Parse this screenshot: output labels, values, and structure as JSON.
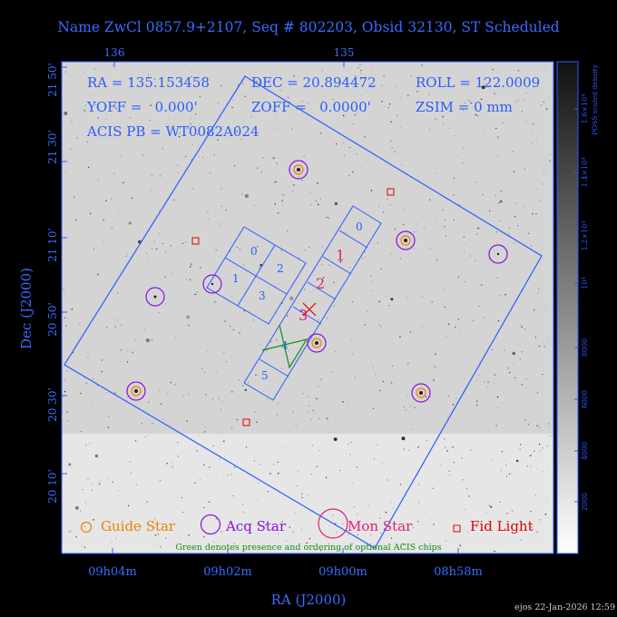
{
  "title": "Name ZwCl 0857.9+2107, Seq # 802203, Obsid 32130, ST Scheduled",
  "colors": {
    "blue": "#2a5cff",
    "text_blue": "#3a6cff",
    "magenta": "#e0207a",
    "red": "#e00000",
    "orange": "#f08000",
    "purple": "#8a10e0",
    "green": "#109010",
    "grey_text": "#cccccc"
  },
  "info": {
    "ra": "RA = 135.153458",
    "dec": "DEC = 20.894472",
    "roll": "ROLL = 122.0009",
    "yoff": "YOFF =   0.000'",
    "zoff": "ZOFF =   0.0000'",
    "zsim": "ZSIM = 0 mm",
    "acis_pb": "ACIS PB = WT0082A024"
  },
  "axes": {
    "x_label": "RA (J2000)",
    "y_label": "Dec (J2000)",
    "top_ticks": [
      "136",
      "135"
    ],
    "bottom_ticks": [
      "09h04m",
      "09h02m",
      "09h00m",
      "08h58m"
    ],
    "left_ticks": [
      "21 50'",
      "21 30'",
      "21 10'",
      "20 50'",
      "20 30'",
      "20 10'"
    ]
  },
  "colorbar": {
    "title": "POSS scaled density",
    "ticks": [
      "2000",
      "4000",
      "6000",
      "8000",
      "10⁴",
      "1.2×10⁴",
      "1.4×10⁴",
      "1.6×10⁴"
    ]
  },
  "ccds": {
    "i_array": [
      "0",
      "1",
      "2",
      "3"
    ],
    "s_array": [
      "0",
      "1",
      "2",
      "3",
      "4",
      "5"
    ]
  },
  "legend": {
    "guide": "Guide Star",
    "acq": "Acq Star",
    "mon": "Mon Star",
    "fid": "Fid Light",
    "note": "Green denotes presence and ordering of optional ACIS chips"
  },
  "footer": "ejos 22-Jan-2026 12:59"
}
